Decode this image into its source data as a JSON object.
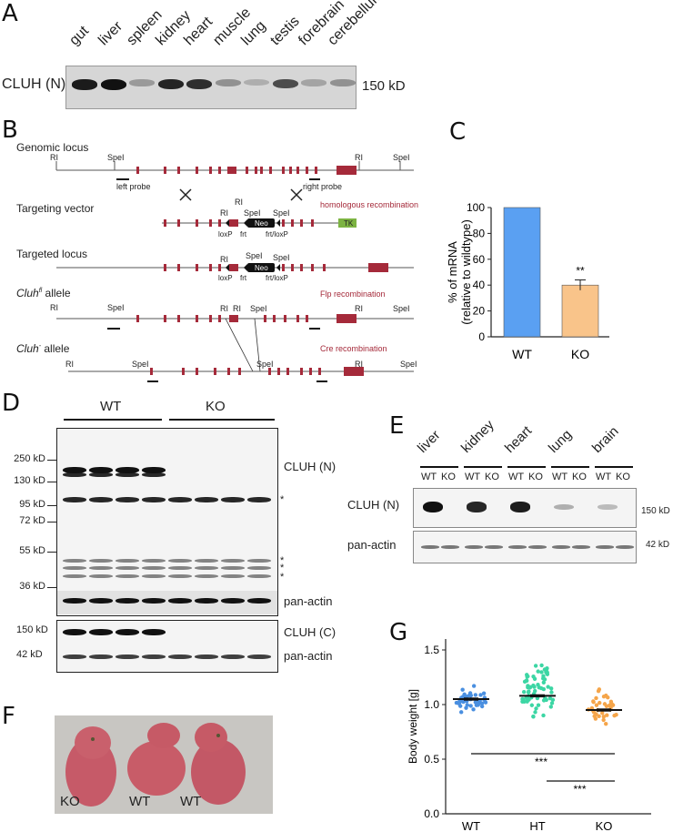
{
  "panel_a": {
    "label": "A",
    "lanes": [
      "gut",
      "liver",
      "spleen",
      "kidney",
      "heart",
      "muscle",
      "lung",
      "testis",
      "forebrain",
      "cerebellum"
    ],
    "blot_label": "CLUH (N)",
    "size_label": "150 kD",
    "band_intensity": [
      0.95,
      1.0,
      0.3,
      0.9,
      0.85,
      0.35,
      0.2,
      0.7,
      0.25,
      0.35
    ]
  },
  "panel_b": {
    "label": "B",
    "rows": [
      {
        "title": "Genomic locus",
        "left_probe": "left probe",
        "right_probe": "right probe"
      },
      {
        "title": "Targeting vector",
        "note": "homologous recombination",
        "tags": [
          "loxP",
          "frt",
          "frt/loxP"
        ],
        "neo": "Neo",
        "tk": "TK"
      },
      {
        "title": "Targeted locus",
        "tags": [
          "loxP",
          "frt",
          "frt/loxP"
        ],
        "neo": "Neo"
      },
      {
        "title": "Cluh",
        "sup": "fl",
        "suffix": " allele",
        "note": "Flp recombination"
      },
      {
        "title": "Cluh",
        "sup": "-",
        "suffix": " allele",
        "note": "Cre recombination"
      }
    ],
    "sites": {
      "ri": "RI",
      "spei": "SpeI"
    }
  },
  "panel_c": {
    "label": "C",
    "significance": "**",
    "colors": {
      "wt": "#5aa0f2",
      "ko": "#f9c48a"
    },
    "chart_data": {
      "type": "bar",
      "categories": [
        "WT",
        "KO"
      ],
      "values": [
        100,
        40
      ],
      "errors": [
        0,
        4
      ],
      "ylabel": "% of mRNA (relative to wildtype)",
      "ylim": [
        0,
        100
      ],
      "yticks": [
        0,
        20,
        40,
        60,
        80,
        100
      ]
    }
  },
  "panel_d": {
    "label": "D",
    "groups": [
      "WT",
      "KO"
    ],
    "markers": [
      "250 kD",
      "130 kD",
      "95 kD",
      "72 kD",
      "55 kD",
      "36 kD"
    ],
    "blot_labels": [
      "CLUH (N)",
      "pan-actin",
      "CLUH (C)",
      "pan-actin"
    ],
    "asterisk": "*",
    "markers_c": [
      "150 kD",
      "42 kD"
    ]
  },
  "panel_e": {
    "label": "E",
    "tissues": [
      "liver",
      "kidney",
      "heart",
      "lung",
      "brain"
    ],
    "genotypes": [
      "WT",
      "KO"
    ],
    "blot_labels": [
      "CLUH (N)",
      "pan-actin"
    ],
    "size_labels": [
      "150 kD",
      "42 kD"
    ],
    "wt_intensity": [
      1.0,
      0.9,
      0.95,
      0.3,
      0.25
    ]
  },
  "panel_f": {
    "label": "F",
    "animal_labels": [
      "KO",
      "WT",
      "WT"
    ]
  },
  "panel_g": {
    "label": "G",
    "significance": [
      "***",
      "***"
    ],
    "colors": {
      "wt": "#4a8fe0",
      "ht": "#3cd6a4",
      "ko": "#f5a54a"
    },
    "chart_data": {
      "type": "scatter",
      "categories": [
        "WT",
        "HT",
        "KO"
      ],
      "means": [
        1.05,
        1.08,
        0.95
      ],
      "sem": [
        0.01,
        0.01,
        0.01
      ],
      "n": [
        40,
        65,
        35
      ],
      "ranges": [
        [
          0.9,
          1.22
        ],
        [
          0.8,
          1.52
        ],
        [
          0.78,
          1.18
        ]
      ],
      "ylabel": "Body weight [g]",
      "ylim": [
        0,
        1.6
      ],
      "yticks": [
        0.0,
        0.5,
        1.0,
        1.5
      ]
    }
  }
}
